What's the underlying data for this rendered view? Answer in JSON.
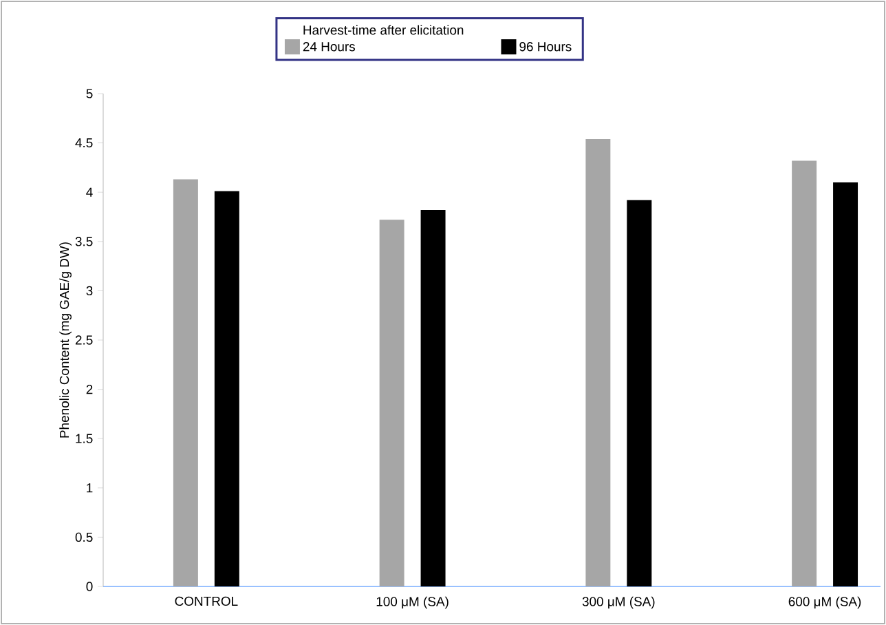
{
  "chart_data": {
    "type": "bar",
    "ylabel": "Phenolic Content (mg GAE/g DW)",
    "legend_title": "Harvest-time after elicitation",
    "categories": [
      "CONTROL",
      "100 μM (SA)",
      "300 μM (SA)",
      "600 μM (SA)"
    ],
    "series": [
      {
        "name": "24 Hours",
        "color": "#a6a6a6",
        "values": [
          4.13,
          3.72,
          4.54,
          4.32
        ]
      },
      {
        "name": "96 Hours",
        "color": "#000000",
        "values": [
          4.01,
          3.82,
          3.92,
          4.1
        ]
      }
    ],
    "ylim": [
      0,
      5
    ],
    "yticks": [
      0,
      0.5,
      1,
      1.5,
      2,
      2.5,
      3,
      3.5,
      4,
      4.5,
      5
    ],
    "grid": false,
    "legend": "top"
  }
}
